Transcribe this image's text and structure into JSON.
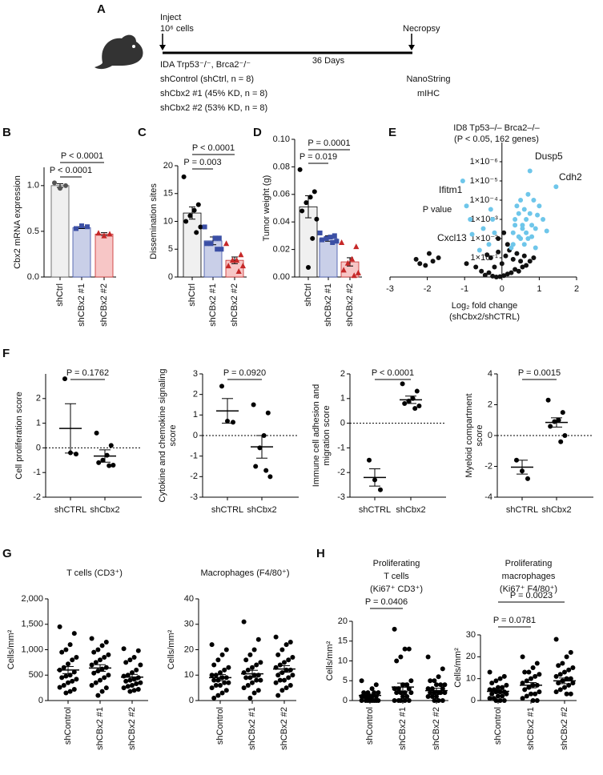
{
  "diagram": {
    "panel": "A",
    "inject": "Inject",
    "cells": "10⁶ cells",
    "necropsy": "Necropsy",
    "days": "36 Days",
    "model": "IDA Trp53⁻/⁻, Brca2⁻/⁻",
    "groups": [
      "shControl (shCtrl, n = 8)",
      "shCbx2 #1 (45% KD, n = 8)",
      "shCbx2 #2 (53% KD, n = 8)"
    ],
    "group_colors": [
      "#000000",
      "#3b4fa5",
      "#c62828"
    ],
    "readouts": [
      "NanoString",
      "mIHC"
    ]
  },
  "chart_data": [
    {
      "type": "bar",
      "panel": "B",
      "ylabel": [
        "Cbx2 mRNA expression"
      ],
      "categories": [
        "shCtrl",
        "shCBx2 #1",
        "shCBx2 #2"
      ],
      "values": [
        1.0,
        0.54,
        0.47
      ],
      "sems": [
        0.02,
        0.01,
        0.015
      ],
      "points": [
        [
          1.03,
          0.97,
          1.0
        ],
        [
          0.53,
          0.56,
          0.55
        ],
        [
          0.48,
          0.45,
          0.47
        ]
      ],
      "colors": [
        "#f0f0f0",
        "#c9cfe8",
        "#f7c6c6"
      ],
      "point_colors": [
        "#555555",
        "#3b4fa5",
        "#c62828"
      ],
      "ylim": [
        0,
        1.2
      ],
      "yticks": [
        {
          "value": 0,
          "label": "0.0"
        },
        {
          "value": 0.5,
          "label": "0.5"
        },
        {
          "value": 1.0,
          "label": "1.0"
        }
      ],
      "annotations": [
        "P < 0.0001",
        "P < 0.0001"
      ]
    },
    {
      "type": "bar",
      "panel": "C",
      "ylabel": [
        "Dissemination sites"
      ],
      "categories": [
        "shCtrl",
        "shCBx2 #1",
        "shCBx2 #2"
      ],
      "values": [
        11.5,
        6.5,
        3.0
      ],
      "sems": [
        1.1,
        0.7,
        0.6
      ],
      "points": [
        [
          18,
          13,
          12,
          11,
          10,
          9,
          8
        ],
        [
          9,
          7,
          7,
          6,
          6,
          5,
          5
        ],
        [
          6,
          4,
          3,
          3,
          2,
          2,
          1
        ]
      ],
      "colors": [
        "#f0f0f0",
        "#c9cfe8",
        "#f7c6c6"
      ],
      "point_colors": [
        "#000000",
        "#3b4fa5",
        "#c62828"
      ],
      "ylim": [
        0,
        20
      ],
      "yticks": [
        0,
        5,
        10,
        15,
        20
      ],
      "annotations": [
        "P < 0.0001",
        "P = 0.003"
      ]
    },
    {
      "type": "bar",
      "panel": "D",
      "ylabel": [
        "Tumor weight (g)"
      ],
      "categories": [
        "shCtrl",
        "shCBx2 #1",
        "shCBx2 #2"
      ],
      "values": [
        0.051,
        0.028,
        0.011
      ],
      "sems": [
        0.008,
        0.002,
        0.003
      ],
      "points": [
        [
          0.078,
          0.062,
          0.058,
          0.054,
          0.048,
          0.042,
          0.028,
          0.007
        ],
        [
          0.032,
          0.03,
          0.029,
          0.028,
          0.027,
          0.026,
          0.025
        ],
        [
          0.025,
          0.022,
          0.013,
          0.01,
          0.005,
          0.003,
          0.001
        ]
      ],
      "colors": [
        "#f0f0f0",
        "#c9cfe8",
        "#f7c6c6"
      ],
      "point_colors": [
        "#000000",
        "#3b4fa5",
        "#c62828"
      ],
      "ylim": [
        0,
        0.1
      ],
      "yticks": [
        {
          "value": 0,
          "label": "0.00"
        },
        {
          "value": 0.02,
          "label": "0.02"
        },
        {
          "value": 0.04,
          "label": "0.04"
        },
        {
          "value": 0.06,
          "label": "0.06"
        },
        {
          "value": 0.08,
          "label": "0.08"
        },
        {
          "value": 0.1,
          "label": "0.10"
        }
      ],
      "annotations": [
        "P = 0.0001",
        "P = 0.019"
      ]
    },
    {
      "type": "scatter",
      "panel": "E",
      "title": [
        "ID8 Tp53–/– Brca2–/–",
        "(P < 0.05, 162 genes)"
      ],
      "xlabel": [
        "Log₂ fold change",
        "(shCbx2/shCTRL)"
      ],
      "ylabel": "P value",
      "log_y": true,
      "xlim": [
        -3,
        2
      ],
      "xticks": [
        -3,
        -2,
        -1,
        0,
        1,
        2
      ],
      "ylim": [
        1,
        1e-07
      ],
      "yticks": [
        {
          "value": 1e-06,
          "label": "1×10⁻⁶"
        },
        {
          "value": 1e-05,
          "label": "1×10⁻⁵"
        },
        {
          "value": 0.0001,
          "label": "1×10⁻⁴"
        },
        {
          "value": 0.001,
          "label": "1×10⁻³"
        },
        {
          "value": 0.01,
          "label": "1×10⁻²"
        },
        {
          "value": 0.1,
          "label": "1×10⁻¹"
        }
      ],
      "annotations": [
        "Dusp5",
        "Cdh2",
        "Ifitm1",
        "Cxcl13"
      ],
      "points": [
        {
          "color": "#111111",
          "x": [
            -2.3,
            -2.2,
            -1.95,
            -1.85,
            -1.7,
            -2.05,
            -0.95,
            -0.7,
            -0.55,
            -0.45,
            -0.35,
            -0.25,
            -0.15,
            -0.05,
            0.05,
            0.15,
            0.25,
            0.35,
            0.45,
            0.55,
            0.65,
            0.75,
            -0.3,
            -0.1,
            0.1,
            0.3,
            0.5,
            -0.2,
            0.0,
            0.2,
            0.4,
            -0.4,
            0.6,
            0.85,
            -0.1,
            0.05,
            0.15
          ],
          "y": [
            0.12,
            0.2,
            0.06,
            0.15,
            0.1,
            0.25,
            0.2,
            0.3,
            0.5,
            0.8,
            0.6,
            0.9,
            1,
            0.95,
            0.85,
            0.7,
            0.6,
            0.4,
            0.5,
            0.3,
            0.25,
            0.15,
            0.1,
            0.05,
            0.08,
            0.12,
            0.15,
            0.3,
            0.2,
            0.04,
            0.06,
            0.07,
            0.08,
            0.1,
            0.01,
            0.005,
            0.02
          ]
        },
        {
          "color": "#6ec6ea",
          "x": [
            1.45,
            0.75,
            -1.05,
            -0.95,
            -0.85,
            -0.3,
            -0.25,
            -0.2,
            0.3,
            0.35,
            0.4,
            0.45,
            0.5,
            0.55,
            0.6,
            0.65,
            0.7,
            0.75,
            0.8,
            0.85,
            0.9,
            0.95,
            1.0,
            1.1,
            1.2,
            0.45,
            0.55,
            0.65,
            0.35,
            0.8,
            -0.35,
            -0.5,
            -0.8,
            -0.6,
            0.25,
            0.3,
            0.5,
            0.6,
            0.7,
            0.9
          ],
          "y": [
            2e-05,
            3e-06,
            1e-05,
            0.0002,
            0.001,
            0.0003,
            0.001,
            0.005,
            0.005,
            0.001,
            0.0002,
            0.0005,
            0.0001,
            0.002,
            0.0003,
            0.001,
            5e-05,
            0.0005,
            0.002,
            0.0001,
            0.003,
            0.0006,
            0.0002,
            0.001,
            0.004,
            0.008,
            0.003,
            0.005,
            0.002,
            0.008,
            0.02,
            0.003,
            0.006,
            0.04,
            0.03,
            0.02,
            0.01,
            0.02,
            0.01,
            0.03
          ]
        }
      ]
    },
    {
      "type": "dot",
      "panel": "F",
      "ylabel": [
        "Cell proliferation score"
      ],
      "categories": [
        "shCTRL",
        "shCbx2"
      ],
      "points": [
        [
          2.8,
          -0.2,
          -0.25
        ],
        [
          0.6,
          0.1,
          -0.3,
          -0.5,
          -0.6,
          -0.7,
          -0.72
        ]
      ],
      "means": [
        0.79,
        -0.33
      ],
      "sems": [
        1.0,
        0.25
      ],
      "zero_line": true,
      "ylim": [
        -2,
        3
      ],
      "yticks": [
        -2,
        -1,
        0,
        1,
        2
      ],
      "annotations": [
        "P = 0.1762"
      ]
    },
    {
      "type": "dot",
      "ylabel": [
        "Cytokine and chemokine signaling",
        "score"
      ],
      "categories": [
        "shCTRL",
        "shCbx2"
      ],
      "points": [
        [
          2.4,
          0.7,
          0.65
        ],
        [
          1.5,
          1.1,
          0.0,
          -0.6,
          -1.5,
          -2.0,
          -1.7
        ]
      ],
      "means": [
        1.2,
        -0.55
      ],
      "sems": [
        0.6,
        0.55
      ],
      "zero_line": true,
      "ylim": [
        -3,
        3
      ],
      "yticks": [
        -3,
        -2,
        -1,
        0,
        1,
        2,
        3
      ],
      "annotations": [
        "P = 0.0920"
      ]
    },
    {
      "type": "dot",
      "ylabel": [
        "Immune cell adhesion and",
        "migration score"
      ],
      "categories": [
        "shCTRL",
        "shCbx2"
      ],
      "points": [
        [
          -1.5,
          -2.3,
          -2.7
        ],
        [
          1.6,
          1.3,
          1.0,
          0.9,
          0.8,
          0.7,
          0.6
        ]
      ],
      "means": [
        -2.2,
        0.95
      ],
      "sems": [
        0.35,
        0.15
      ],
      "zero_line": true,
      "ylim": [
        -3,
        2
      ],
      "yticks": [
        -3,
        -2,
        -1,
        0,
        1,
        2
      ],
      "annotations": [
        "P < 0.0001"
      ]
    },
    {
      "type": "dot",
      "ylabel": [
        "Myeloid compartment",
        "score"
      ],
      "categories": [
        "shCTRL",
        "shCbx2"
      ],
      "points": [
        [
          -1.6,
          -2.3,
          -2.8
        ],
        [
          2.3,
          1.5,
          1.0,
          0.9,
          0.6,
          0.0,
          -0.4
        ]
      ],
      "means": [
        -2.05,
        0.85
      ],
      "sems": [
        0.45,
        0.3
      ],
      "zero_line": true,
      "ylim": [
        -4,
        4
      ],
      "yticks": [
        -4,
        -2,
        0,
        2,
        4
      ],
      "annotations": [
        "P = 0.0015"
      ]
    },
    {
      "type": "dot",
      "panel": "G",
      "title": [
        "T cells (CD3⁺)"
      ],
      "ylabel": [
        "Cells/mm²"
      ],
      "categories": [
        "shControl",
        "shCBx2 #1",
        "shCBx2 #2"
      ],
      "points": [
        [
          1450,
          1320,
          1100,
          1000,
          950,
          850,
          800,
          720,
          650,
          600,
          560,
          500,
          480,
          450,
          420,
          380,
          350,
          300,
          260,
          220,
          180,
          150
        ],
        [
          1220,
          1150,
          1080,
          1000,
          950,
          900,
          850,
          800,
          750,
          700,
          650,
          620,
          580,
          540,
          500,
          450,
          400,
          350,
          300,
          250,
          180,
          100
        ],
        [
          1020,
          980,
          850,
          800,
          750,
          700,
          600,
          550,
          500,
          480,
          450,
          420,
          400,
          380,
          350,
          330,
          300,
          280,
          250,
          220,
          200,
          180
        ]
      ],
      "means": [
        600,
        640,
        460
      ],
      "sems": [
        70,
        65,
        55
      ],
      "ylim": [
        0,
        2000
      ],
      "yticks": [
        0,
        500,
        {
          "value": 1000,
          "label": "1,000"
        },
        {
          "value": 1500,
          "label": "1,500"
        },
        {
          "value": 2000,
          "label": "2,000"
        }
      ],
      "annotations": []
    },
    {
      "type": "dot",
      "title": [
        "Macrophages (F4/80⁺)"
      ],
      "ylabel": [
        "Cells/mm²"
      ],
      "categories": [
        "shControl",
        "shCBx2 #1",
        "shCBx2 #2"
      ],
      "points": [
        [
          22,
          20,
          18,
          16,
          14,
          13,
          12,
          11,
          10,
          10,
          9,
          9,
          8,
          8,
          7,
          7,
          6,
          6,
          5,
          4,
          3,
          2,
          1
        ],
        [
          31,
          24,
          20,
          18,
          16,
          15,
          14,
          13,
          12,
          11,
          10,
          10,
          9,
          9,
          8,
          8,
          7,
          6,
          5,
          4,
          3,
          1
        ],
        [
          25,
          23,
          22,
          20,
          18,
          17,
          16,
          15,
          14,
          13,
          12,
          12,
          11,
          10,
          10,
          9,
          8,
          8,
          7,
          6,
          5,
          4,
          2
        ]
      ],
      "means": [
        9,
        10.5,
        12.4
      ],
      "sems": [
        1.2,
        1.4,
        1.3
      ],
      "ylim": [
        0,
        40
      ],
      "yticks": [
        0,
        10,
        20,
        30,
        40
      ],
      "annotations": []
    },
    {
      "type": "dot",
      "panel": "H",
      "title": [
        "Proliferating",
        "T cells",
        "(Ki67⁺ CD3⁺)"
      ],
      "ylabel": [
        "Cells/mm²"
      ],
      "categories": [
        "shControl",
        "shCBx2 #1",
        "shCBx2 #2"
      ],
      "points": [
        [
          5,
          4,
          3,
          2,
          2,
          2,
          2,
          1,
          1,
          1,
          1,
          1,
          1,
          1,
          0,
          0,
          0,
          0,
          0,
          0,
          0,
          0
        ],
        [
          18,
          13,
          13,
          11,
          10,
          5,
          4,
          4,
          3,
          3,
          3,
          2,
          2,
          2,
          2,
          1,
          1,
          0,
          0,
          0,
          0,
          0
        ],
        [
          11,
          8,
          6,
          5,
          5,
          4,
          4,
          4,
          3,
          3,
          3,
          2,
          2,
          2,
          2,
          2,
          1,
          1,
          1,
          0,
          0,
          0
        ]
      ],
      "means": [
        1.3,
        3.4,
        2.5
      ],
      "sems": [
        0.35,
        1.0,
        0.6
      ],
      "ylim": [
        0,
        20
      ],
      "yticks": [
        0,
        5,
        10,
        15,
        20
      ],
      "annotations": [
        "P = 0.0406"
      ]
    },
    {
      "type": "dot",
      "title": [
        "Proliferating",
        "macrophages",
        "(Ki67⁺ F4/80⁺)"
      ],
      "ylabel": [
        "Cells/mm²"
      ],
      "categories": [
        "shControl",
        "shCBx2 #1",
        "shCBx2 #2"
      ],
      "points": [
        [
          13,
          11,
          10,
          9,
          8,
          7,
          6,
          6,
          5,
          5,
          4,
          4,
          4,
          3,
          3,
          2,
          2,
          1,
          1,
          0,
          0,
          0
        ],
        [
          20,
          17,
          15,
          13,
          13,
          12,
          11,
          10,
          9,
          8,
          7,
          7,
          6,
          5,
          4,
          3,
          3,
          2,
          1,
          0,
          0
        ],
        [
          28,
          22,
          20,
          17,
          16,
          15,
          14,
          13,
          12,
          11,
          10,
          10,
          9,
          8,
          8,
          7,
          6,
          5,
          4,
          3,
          3
        ]
      ],
      "means": [
        4.2,
        7.0,
        9.0
      ],
      "sems": [
        0.8,
        1.2,
        1.3
      ],
      "ylim": [
        0,
        30
      ],
      "yticks": [
        0,
        10,
        20,
        30
      ],
      "annotations": [
        "P = 0.0023",
        "P = 0.0781"
      ]
    }
  ]
}
